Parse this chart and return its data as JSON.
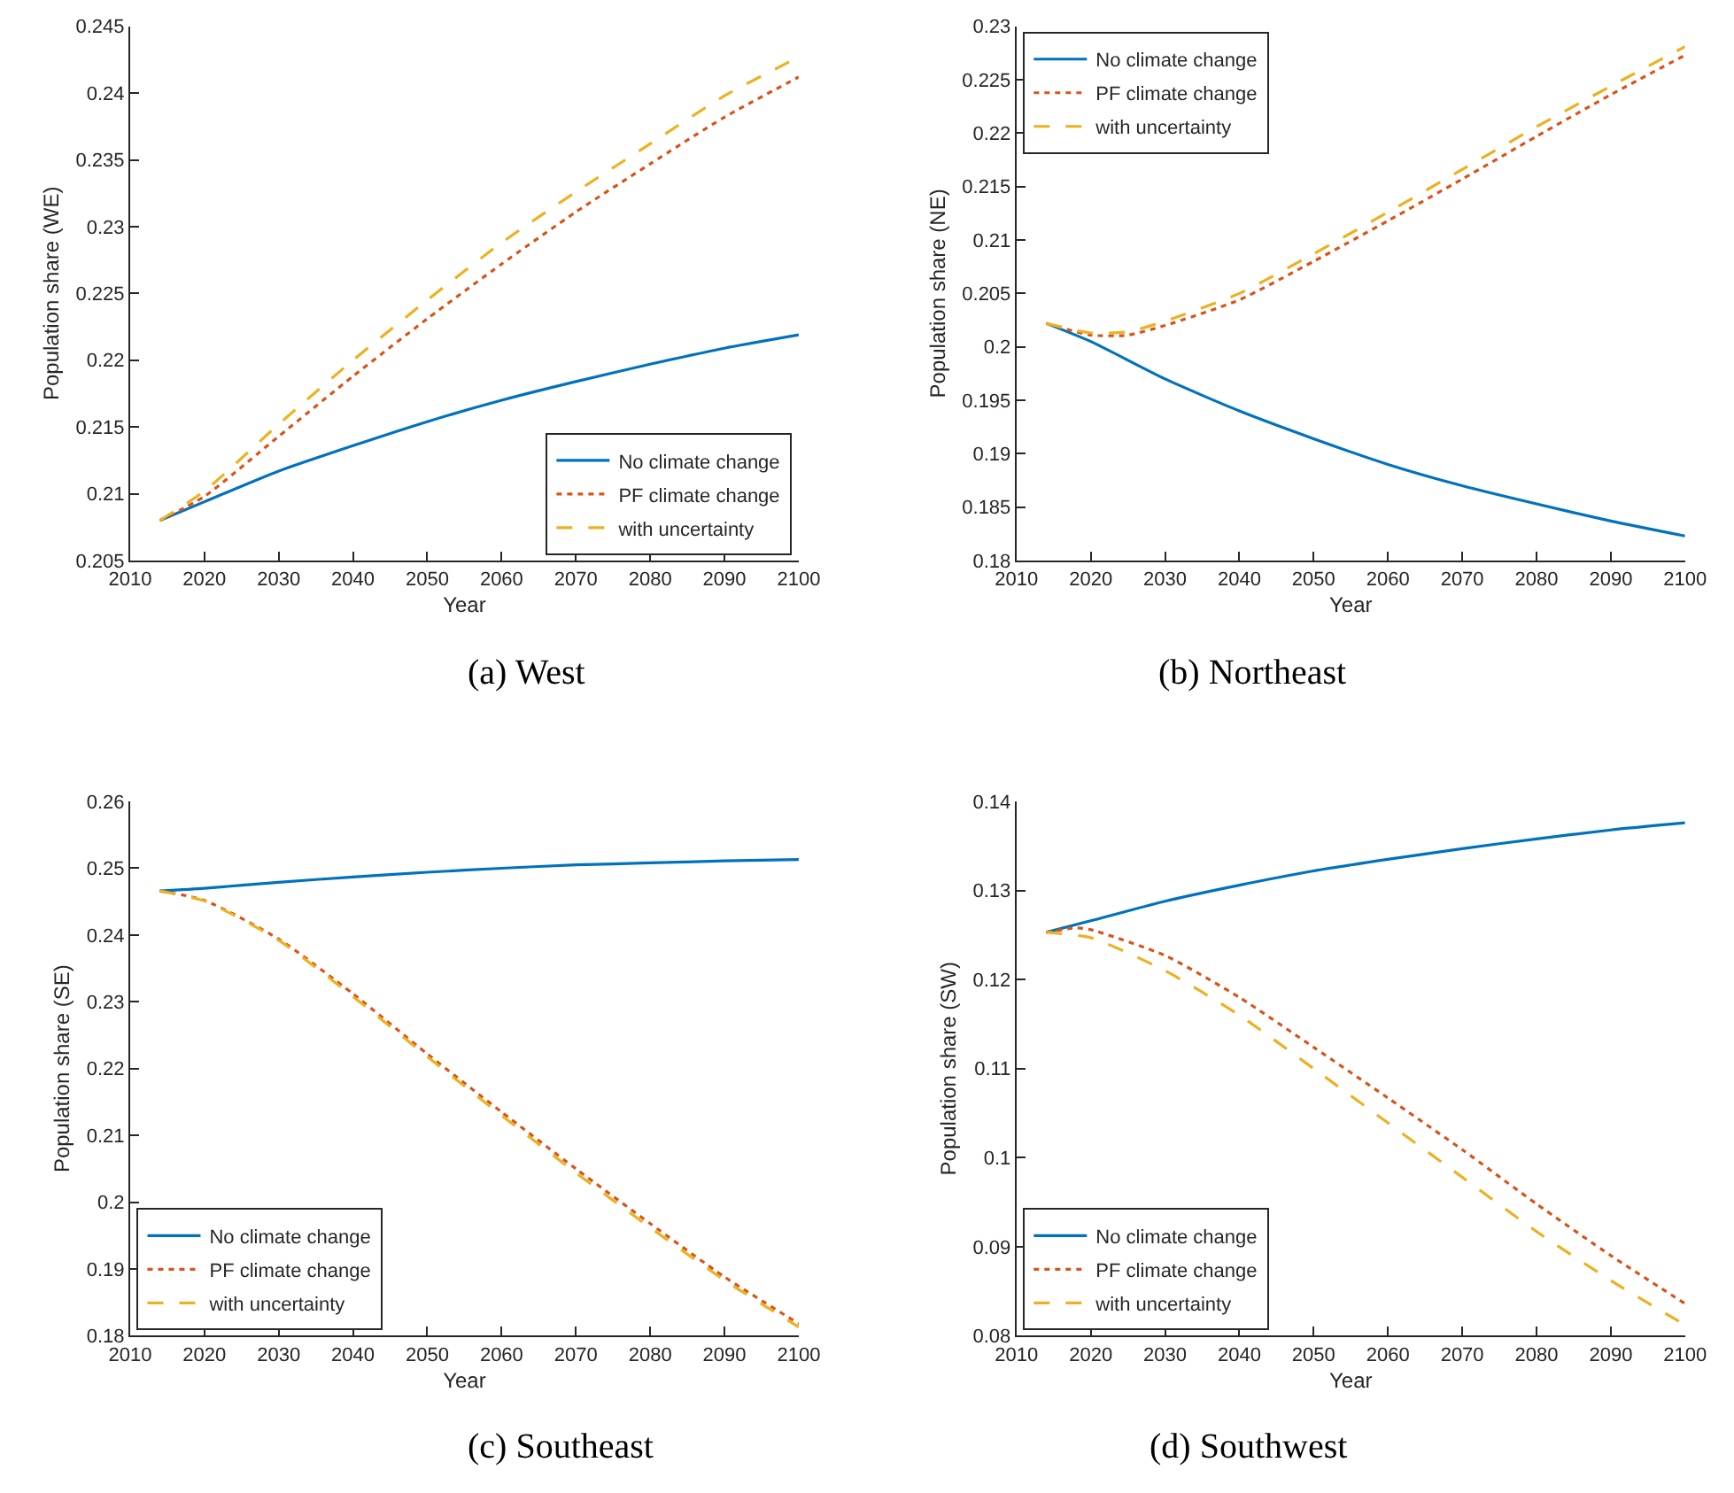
{
  "chart_data": [
    {
      "type": "line",
      "title": "(a) West",
      "xlabel": "Year",
      "ylabel": "Population share (WE)",
      "xlim": [
        2010,
        2100
      ],
      "xticks": [
        2010,
        2020,
        2030,
        2040,
        2050,
        2060,
        2070,
        2080,
        2090,
        2100
      ],
      "ylim": [
        0.205,
        0.245
      ],
      "yticks": [
        0.205,
        0.21,
        0.215,
        0.22,
        0.225,
        0.23,
        0.235,
        0.24,
        0.245
      ],
      "legend": "bottom right",
      "series": [
        {
          "name": "No climate change",
          "color": "#0072bd",
          "line_style": "solid",
          "x": [
            2014,
            2020,
            2030,
            2040,
            2050,
            2060,
            2070,
            2080,
            2090,
            2100
          ],
          "values": [
            0.208,
            0.2094,
            0.2117,
            0.2136,
            0.2154,
            0.217,
            0.2184,
            0.2197,
            0.2209,
            0.2219
          ]
        },
        {
          "name": "PF climate change",
          "color": "#d95319",
          "line_style": "dotted",
          "x": [
            2014,
            2020,
            2030,
            2040,
            2050,
            2060,
            2070,
            2080,
            2090,
            2100
          ],
          "values": [
            0.208,
            0.2098,
            0.2143,
            0.2188,
            0.2231,
            0.2272,
            0.2311,
            0.2347,
            0.2382,
            0.2412
          ]
        },
        {
          "name": "with uncertainty",
          "color": "#edb120",
          "line_style": "dashed",
          "x": [
            2014,
            2020,
            2030,
            2040,
            2050,
            2060,
            2070,
            2080,
            2090,
            2100
          ],
          "values": [
            0.208,
            0.2102,
            0.2152,
            0.22,
            0.2245,
            0.2288,
            0.2326,
            0.2362,
            0.2398,
            0.2427
          ]
        }
      ]
    },
    {
      "type": "line",
      "title": "(b) Northeast",
      "xlabel": "Year",
      "ylabel": "Population share (NE)",
      "xlim": [
        2010,
        2100
      ],
      "xticks": [
        2010,
        2020,
        2030,
        2040,
        2050,
        2060,
        2070,
        2080,
        2090,
        2100
      ],
      "ylim": [
        0.18,
        0.23
      ],
      "yticks": [
        0.18,
        0.185,
        0.19,
        0.195,
        0.2,
        0.205,
        0.21,
        0.215,
        0.22,
        0.225,
        0.23
      ],
      "legend": "top left",
      "series": [
        {
          "name": "No climate change",
          "color": "#0072bd",
          "line_style": "solid",
          "x": [
            2014,
            2020,
            2030,
            2040,
            2050,
            2060,
            2070,
            2080,
            2090,
            2100
          ],
          "values": [
            0.2022,
            0.2005,
            0.197,
            0.194,
            0.1914,
            0.189,
            0.187,
            0.1853,
            0.1837,
            0.1823
          ]
        },
        {
          "name": "PF climate change",
          "color": "#d95319",
          "line_style": "dotted",
          "x": [
            2014,
            2020,
            2025,
            2030,
            2040,
            2050,
            2060,
            2070,
            2080,
            2090,
            2100
          ],
          "values": [
            0.2022,
            0.2011,
            0.2011,
            0.202,
            0.2044,
            0.208,
            0.2118,
            0.2157,
            0.2197,
            0.2236,
            0.2273
          ]
        },
        {
          "name": "with uncertainty",
          "color": "#edb120",
          "line_style": "dashed",
          "x": [
            2014,
            2020,
            2025,
            2030,
            2040,
            2050,
            2060,
            2070,
            2080,
            2090,
            2100
          ],
          "values": [
            0.2022,
            0.2013,
            0.2014,
            0.2024,
            0.205,
            0.2087,
            0.2126,
            0.2166,
            0.2206,
            0.2244,
            0.2281
          ]
        }
      ]
    },
    {
      "type": "line",
      "title": "(c) Southeast",
      "xlabel": "Year",
      "ylabel": "Population share (SE)",
      "xlim": [
        2010,
        2100
      ],
      "xticks": [
        2010,
        2020,
        2030,
        2040,
        2050,
        2060,
        2070,
        2080,
        2090,
        2100
      ],
      "ylim": [
        0.18,
        0.26
      ],
      "yticks": [
        0.18,
        0.19,
        0.2,
        0.21,
        0.22,
        0.23,
        0.24,
        0.25,
        0.26
      ],
      "legend": "bottom left",
      "series": [
        {
          "name": "No climate change",
          "color": "#0072bd",
          "line_style": "solid",
          "x": [
            2014,
            2020,
            2030,
            2040,
            2050,
            2060,
            2070,
            2080,
            2090,
            2100
          ],
          "values": [
            0.2466,
            0.247,
            0.2479,
            0.2487,
            0.2494,
            0.25,
            0.2505,
            0.2508,
            0.2511,
            0.2513
          ]
        },
        {
          "name": "PF climate change",
          "color": "#d95319",
          "line_style": "dotted",
          "x": [
            2014,
            2020,
            2030,
            2040,
            2050,
            2060,
            2070,
            2080,
            2090,
            2100
          ],
          "values": [
            0.2466,
            0.2452,
            0.2394,
            0.2312,
            0.2222,
            0.2135,
            0.205,
            0.1968,
            0.1888,
            0.1818
          ]
        },
        {
          "name": "with uncertainty",
          "color": "#edb120",
          "line_style": "dashed",
          "x": [
            2014,
            2020,
            2030,
            2040,
            2050,
            2060,
            2070,
            2080,
            2090,
            2100
          ],
          "values": [
            0.2466,
            0.2451,
            0.2392,
            0.2308,
            0.2218,
            0.213,
            0.2044,
            0.1962,
            0.1883,
            0.1813
          ]
        }
      ]
    },
    {
      "type": "line",
      "title": "(d) Southwest",
      "xlabel": "Year",
      "ylabel": "Population share (SW)",
      "xlim": [
        2010,
        2100
      ],
      "xticks": [
        2010,
        2020,
        2030,
        2040,
        2050,
        2060,
        2070,
        2080,
        2090,
        2100
      ],
      "ylim": [
        0.08,
        0.14
      ],
      "yticks": [
        0.08,
        0.09,
        0.1,
        0.11,
        0.12,
        0.13,
        0.14
      ],
      "legend": "bottom left",
      "series": [
        {
          "name": "No climate change",
          "color": "#0072bd",
          "line_style": "solid",
          "x": [
            2014,
            2020,
            2030,
            2040,
            2050,
            2060,
            2070,
            2080,
            2090,
            2100
          ],
          "values": [
            0.1253,
            0.1266,
            0.1288,
            0.1306,
            0.1322,
            0.1335,
            0.1347,
            0.1358,
            0.1368,
            0.1376
          ]
        },
        {
          "name": "PF climate change",
          "color": "#d95319",
          "line_style": "dotted",
          "x": [
            2014,
            2018,
            2020,
            2030,
            2040,
            2050,
            2060,
            2070,
            2080,
            2090,
            2100
          ],
          "values": [
            0.1253,
            0.1258,
            0.1256,
            0.1227,
            0.118,
            0.1124,
            0.1067,
            0.1009,
            0.0948,
            0.089,
            0.0836
          ]
        },
        {
          "name": "with uncertainty",
          "color": "#edb120",
          "line_style": "dashed",
          "x": [
            2014,
            2020,
            2030,
            2040,
            2050,
            2060,
            2070,
            2080,
            2090,
            2100
          ],
          "values": [
            0.1253,
            0.1247,
            0.121,
            0.116,
            0.11,
            0.1039,
            0.0978,
            0.0917,
            0.0862,
            0.0812
          ]
        }
      ]
    }
  ]
}
